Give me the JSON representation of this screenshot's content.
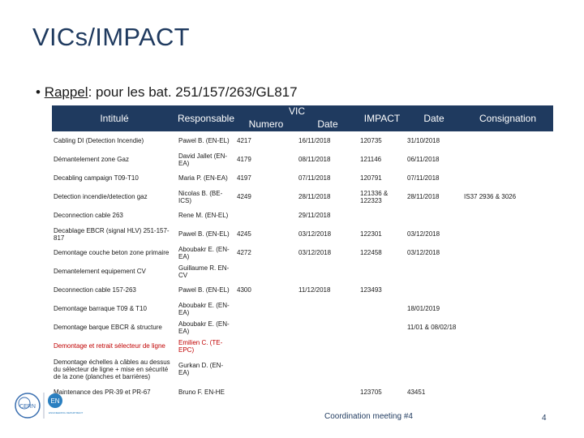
{
  "title": "VICs/IMPACT",
  "bullet": {
    "marker": "•",
    "underlined": "Rappel",
    "rest": ": pour les bat. 251/157/263/GL817"
  },
  "table": {
    "headers": {
      "intitule": "Intitulé",
      "responsable": "Responsable",
      "vic": "VIC",
      "numero": "Numero",
      "date": "Date",
      "impact": "IMPACT",
      "impact_date": "Date",
      "consignation": "Consignation"
    },
    "rows": [
      {
        "intitule": "Cabling DI (Detection Incendie)",
        "responsable": "Pawel B. (EN-EL)",
        "vic_num": "4217",
        "vic_date": "16/11/2018",
        "impact": "120735",
        "impact_date": "31/10/2018",
        "consignation": "",
        "red": false
      },
      {
        "intitule": "Démantelement zone Gaz",
        "responsable": "David Jallet (EN-EA)",
        "vic_num": "4179",
        "vic_date": "08/11/2018",
        "impact": "121146",
        "impact_date": "06/11/2018",
        "consignation": "",
        "red": false
      },
      {
        "intitule": "Decabling campaign T09-T10",
        "responsable": "Maria P. (EN-EA)",
        "vic_num": "4197",
        "vic_date": "07/11/2018",
        "impact": "120791",
        "impact_date": "07/11/2018",
        "consignation": "",
        "red": false
      },
      {
        "intitule": "Detection incendie/detection gaz",
        "responsable": "Nicolas B. (BE-ICS)",
        "vic_num": "4249",
        "vic_date": "28/11/2018",
        "impact": "121336 & 122323",
        "impact_date": "28/11/2018",
        "consignation": "IS37 2936 & 3026",
        "red": false
      },
      {
        "intitule": "Deconnection cable 263",
        "responsable": "Rene M. (EN-EL)",
        "vic_num": "",
        "vic_date": "29/11/2018",
        "impact": "",
        "impact_date": "",
        "consignation": "",
        "red": false
      },
      {
        "intitule": "Decablage EBCR (signal HLV) 251-157-817",
        "responsable": "Pawel B. (EN-EL)",
        "vic_num": "4245",
        "vic_date": "03/12/2018",
        "impact": "122301",
        "impact_date": "03/12/2018",
        "consignation": "",
        "red": false
      },
      {
        "intitule": "Demontage couche beton zone primaire",
        "responsable": "Aboubakr E. (EN-EA)",
        "vic_num": "4272",
        "vic_date": "03/12/2018",
        "impact": "122458",
        "impact_date": "03/12/2018",
        "consignation": "",
        "red": false
      },
      {
        "intitule": "Demantelement equipement CV",
        "responsable": "Guillaume R. EN-CV",
        "vic_num": "",
        "vic_date": "",
        "impact": "",
        "impact_date": "",
        "consignation": "",
        "red": false
      },
      {
        "intitule": "Deconnection cable 157-263",
        "responsable": "Pawel B. (EN-EL)",
        "vic_num": "4300",
        "vic_date": "11/12/2018",
        "impact": "123493",
        "impact_date": "",
        "consignation": "",
        "red": false
      },
      {
        "intitule": "Demontage barraque T09 & T10",
        "responsable": "Aboubakr E. (EN-EA)",
        "vic_num": "",
        "vic_date": "",
        "impact": "",
        "impact_date": "18/01/2019",
        "consignation": "",
        "red": false
      },
      {
        "intitule": "Demontage barque EBCR & structure",
        "responsable": "Aboubakr E. (EN-EA)",
        "vic_num": "",
        "vic_date": "",
        "impact": "",
        "impact_date": "11/01 & 08/02/18",
        "consignation": "",
        "red": false
      },
      {
        "intitule": "Demontage et retrait sélecteur de ligne",
        "responsable": "Emilien C. (TE-EPC)",
        "vic_num": "",
        "vic_date": "",
        "impact": "",
        "impact_date": "",
        "consignation": "",
        "red": true
      },
      {
        "intitule": "Demontage échelles à câbles au dessus du sélecteur de ligne + mise en sécurité de la zone (planches et barrières)",
        "responsable": "Gurkan D. (EN-EA)",
        "vic_num": "",
        "vic_date": "",
        "impact": "",
        "impact_date": "",
        "consignation": "",
        "red": false
      },
      {
        "intitule": "Maintenance des PR-39 et PR-67",
        "responsable": "Bruno F. EN-HE",
        "vic_num": "",
        "vic_date": "",
        "impact": "123705",
        "impact_date": "43451",
        "consignation": "",
        "red": false
      }
    ]
  },
  "footer": "Coordination meeting #4",
  "page_number": "4",
  "logo": {
    "left_text": "CERN",
    "right_text": "EN",
    "caption": "ENGINEERING DEPARTMENT",
    "colors": {
      "cern": "#3a6fb0",
      "en": "#2a7fc0"
    }
  },
  "colors": {
    "accent": "#1f3a5f",
    "red_text": "#c00000"
  }
}
